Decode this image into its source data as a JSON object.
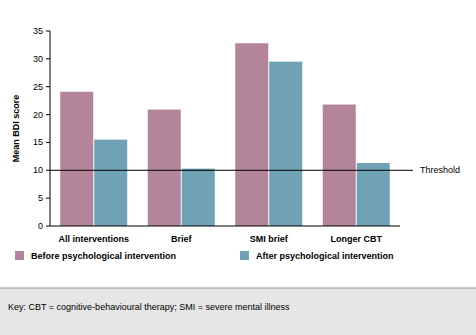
{
  "chart_data": {
    "type": "bar",
    "y_label": "Mean BDI score",
    "categories": [
      "All interventions",
      "Brief",
      "SMI brief",
      "Longer CBT"
    ],
    "series": [
      {
        "name": "Before psychological intervention",
        "color": "#b4849a",
        "values": [
          24.1,
          20.9,
          32.8,
          21.8
        ]
      },
      {
        "name": "After psychological intervention",
        "color": "#6fa2b4",
        "values": [
          15.5,
          10.3,
          29.5,
          11.3
        ]
      }
    ],
    "ylim": [
      0,
      35
    ],
    "yticks": [
      0,
      5,
      10,
      15,
      20,
      25,
      30,
      35
    ],
    "grid": false,
    "legend": "bottom",
    "annotations": [
      {
        "text": "Threshold",
        "y": 10
      }
    ],
    "caption": "Key: CBT = cognitive-behavioural therapy; SMI = severe mental illness"
  }
}
